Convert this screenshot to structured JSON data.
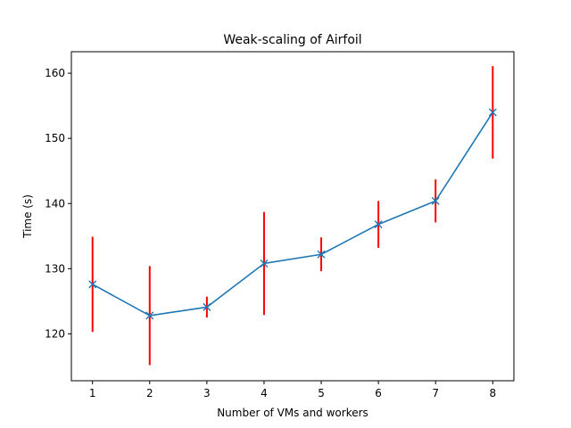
{
  "chart_data": {
    "type": "line",
    "title": "Weak-scaling of Airfoil",
    "xlabel": "Number of VMs and workers",
    "ylabel": "Time (s)",
    "x": [
      1,
      2,
      3,
      4,
      5,
      6,
      7,
      8
    ],
    "xticks": [
      1,
      2,
      3,
      4,
      5,
      6,
      7,
      8
    ],
    "yticks": [
      120,
      130,
      140,
      150,
      160
    ],
    "xlim": [
      0.63,
      8.37
    ],
    "ylim": [
      112.8,
      163.3
    ],
    "grid": false,
    "series": [
      {
        "values": [
          127.6,
          122.8,
          124.1,
          130.8,
          132.2,
          136.8,
          140.4,
          154.0
        ],
        "error": [
          7.3,
          7.6,
          1.6,
          7.9,
          2.6,
          3.6,
          3.3,
          7.1
        ],
        "marker": "x",
        "color": "#1f77b4",
        "error_color": "#ff0000"
      }
    ]
  }
}
